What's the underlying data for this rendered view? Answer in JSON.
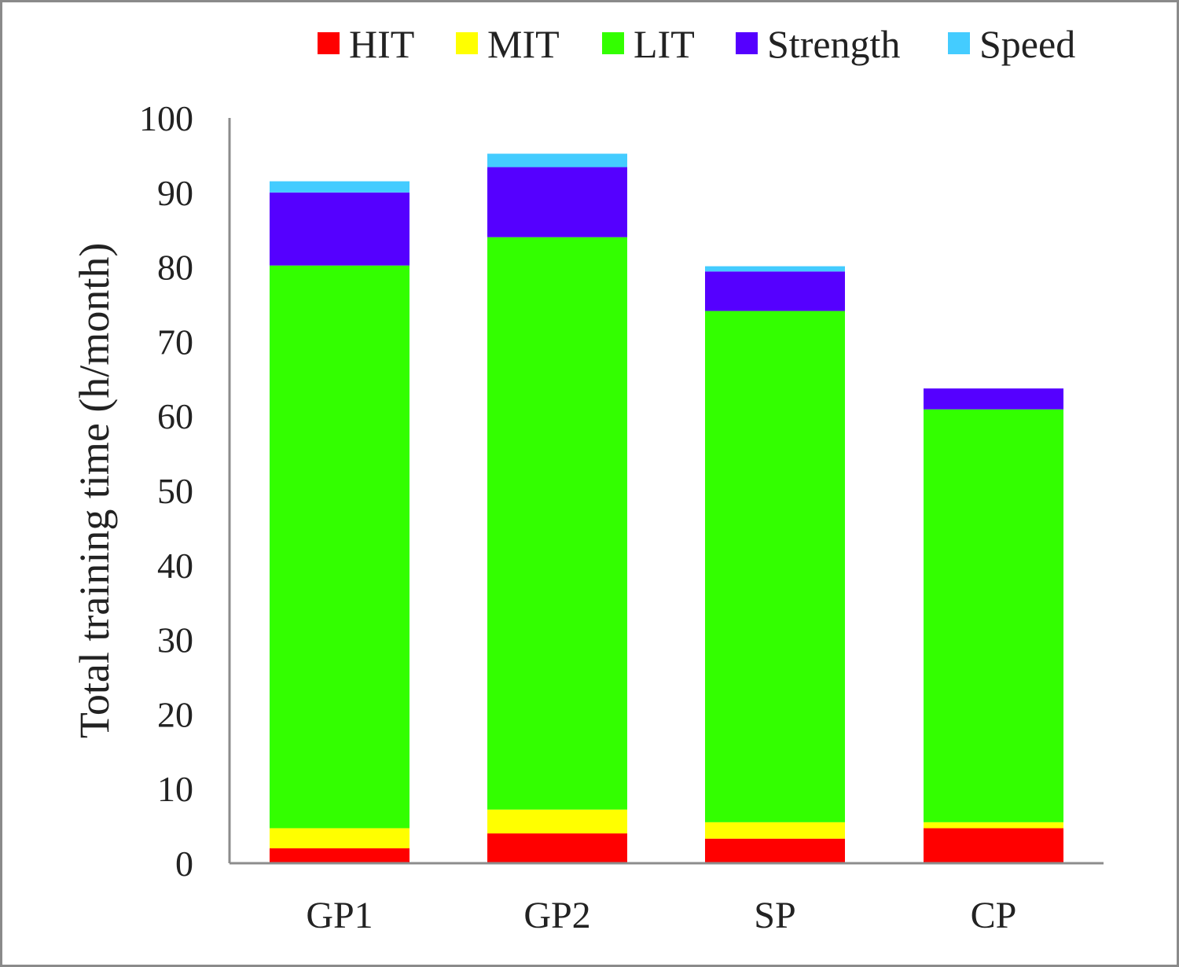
{
  "chart_data": {
    "type": "bar",
    "stacked": true,
    "title": "",
    "xlabel": "",
    "ylabel": "Total training time (h/month)",
    "ylim": [
      0,
      100
    ],
    "yticks": [
      0,
      10,
      20,
      30,
      40,
      50,
      60,
      70,
      80,
      90,
      100
    ],
    "grid": false,
    "legend_position": "top",
    "categories": [
      "GP1",
      "GP2",
      "SP",
      "CP"
    ],
    "series": [
      {
        "name": "HIT",
        "color": "#ff0000",
        "values": [
          2.0,
          4.0,
          3.3,
          4.7
        ]
      },
      {
        "name": "MIT",
        "color": "#ffff00",
        "values": [
          2.7,
          3.2,
          2.2,
          0.8
        ]
      },
      {
        "name": "LIT",
        "color": "#33ff00",
        "values": [
          75.5,
          76.8,
          68.6,
          55.4
        ]
      },
      {
        "name": "Strength",
        "color": "#5500ff",
        "values": [
          9.8,
          9.4,
          5.3,
          2.8
        ]
      },
      {
        "name": "Speed",
        "color": "#44ccff",
        "values": [
          1.5,
          1.8,
          0.7,
          0.0
        ]
      }
    ]
  }
}
